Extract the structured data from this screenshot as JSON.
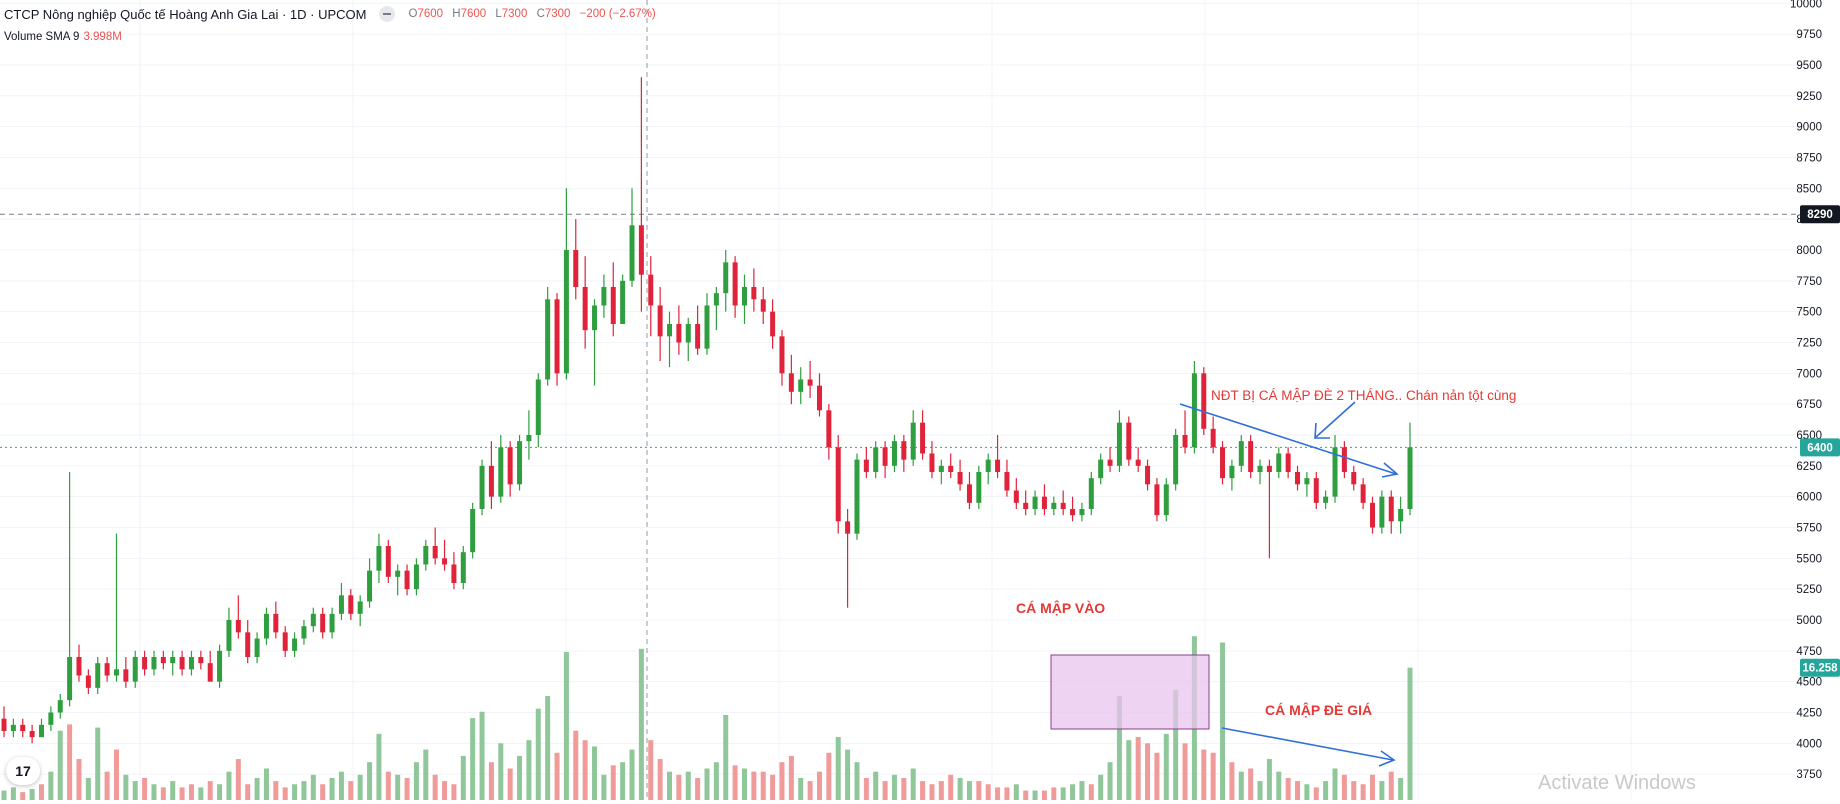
{
  "header": {
    "symbol_title": "CTCP Nông nghiệp Quốc tế Hoàng Anh Gia Lai · 1D · UPCOM",
    "open_label": "O",
    "open": "7600",
    "high_label": "H",
    "high": "7600",
    "low_label": "L",
    "low": "7300",
    "close_label": "C",
    "close": "7300",
    "change": "−200 (−2.67%)"
  },
  "volume_legend": {
    "label": "Volume SMA 9",
    "value": "3.998M"
  },
  "price_axis": {
    "ticks": [
      "10000",
      "9750",
      "9500",
      "9250",
      "9000",
      "8750",
      "8500",
      "8250",
      "8000",
      "7750",
      "7500",
      "7250",
      "7000",
      "6750",
      "6500",
      "6250",
      "6000",
      "5750",
      "5500",
      "5250",
      "5000",
      "4750",
      "4500",
      "4250",
      "4000",
      "3750"
    ],
    "crosshair_label": "8290",
    "last_price_label": "6400",
    "volume_label": "16.258"
  },
  "annotations": {
    "top_note": "NĐT BỊ CÁ MẬP ĐÈ 2 THÁNG.. Chán nản tột cùng",
    "shark_in": "CÁ MẬP VÀO",
    "shark_press": "CÁ MẬP ĐÈ GIÁ"
  },
  "watermark": "Activate Windows",
  "logo_text": "17",
  "colors": {
    "up": "#26a69a",
    "down": "#ef5350",
    "up_candle": "#2e9e3e",
    "down_candle": "#e0233a",
    "vol_up": "#8fc79a",
    "vol_down": "#f19a9a",
    "annotation": "#e53935",
    "arrow": "#2f6fd8",
    "box_fill": "#e9c4ee",
    "last_price_bg": "#26a69a"
  },
  "chart_data": {
    "type": "candlestick",
    "timeframe": "1D",
    "ylim": [
      3700,
      10050
    ],
    "crosshair_price": 8290,
    "last_price": 6400,
    "ohlc": [
      [
        4200,
        4300,
        4050,
        4100
      ],
      [
        4100,
        4200,
        4050,
        4150
      ],
      [
        4150,
        4200,
        4050,
        4100
      ],
      [
        4100,
        4150,
        4000,
        4050
      ],
      [
        4050,
        4200,
        4050,
        4150
      ],
      [
        4150,
        4300,
        4100,
        4250
      ],
      [
        4250,
        4400,
        4200,
        4350
      ],
      [
        4350,
        6200,
        4300,
        4700
      ],
      [
        4700,
        4800,
        4500,
        4550
      ],
      [
        4550,
        4600,
        4400,
        4450
      ],
      [
        4450,
        4700,
        4400,
        4650
      ],
      [
        4650,
        4700,
        4500,
        4550
      ],
      [
        4550,
        5700,
        4500,
        4600
      ],
      [
        4600,
        4700,
        4450,
        4500
      ],
      [
        4500,
        4750,
        4450,
        4700
      ],
      [
        4700,
        4750,
        4550,
        4600
      ],
      [
        4600,
        4750,
        4550,
        4700
      ],
      [
        4700,
        4750,
        4600,
        4650
      ],
      [
        4650,
        4750,
        4550,
        4700
      ],
      [
        4700,
        4750,
        4550,
        4600
      ],
      [
        4600,
        4750,
        4550,
        4700
      ],
      [
        4700,
        4750,
        4600,
        4650
      ],
      [
        4650,
        4750,
        4550,
        4500
      ],
      [
        4500,
        4800,
        4450,
        4750
      ],
      [
        4750,
        5100,
        4700,
        5000
      ],
      [
        5000,
        5200,
        4850,
        4900
      ],
      [
        4900,
        5000,
        4650,
        4700
      ],
      [
        4700,
        4900,
        4650,
        4850
      ],
      [
        4850,
        5100,
        4800,
        5050
      ],
      [
        5050,
        5150,
        4850,
        4900
      ],
      [
        4900,
        4950,
        4700,
        4750
      ],
      [
        4750,
        4900,
        4700,
        4850
      ],
      [
        4850,
        5000,
        4800,
        4950
      ],
      [
        4950,
        5100,
        4900,
        5050
      ],
      [
        5050,
        5100,
        4850,
        4900
      ],
      [
        4900,
        5100,
        4850,
        5050
      ],
      [
        5050,
        5300,
        5000,
        5200
      ],
      [
        5200,
        5250,
        5000,
        5050
      ],
      [
        5050,
        5200,
        4950,
        5150
      ],
      [
        5150,
        5500,
        5100,
        5400
      ],
      [
        5400,
        5700,
        5300,
        5600
      ],
      [
        5600,
        5650,
        5300,
        5350
      ],
      [
        5350,
        5450,
        5200,
        5400
      ],
      [
        5400,
        5450,
        5200,
        5250
      ],
      [
        5250,
        5500,
        5200,
        5450
      ],
      [
        5450,
        5650,
        5400,
        5600
      ],
      [
        5600,
        5750,
        5450,
        5500
      ],
      [
        5500,
        5650,
        5400,
        5450
      ],
      [
        5450,
        5550,
        5250,
        5300
      ],
      [
        5300,
        5600,
        5250,
        5550
      ],
      [
        5550,
        5950,
        5500,
        5900
      ],
      [
        5900,
        6300,
        5850,
        6250
      ],
      [
        6250,
        6450,
        5900,
        6000
      ],
      [
        6000,
        6500,
        5950,
        6400
      ],
      [
        6400,
        6450,
        6000,
        6100
      ],
      [
        6100,
        6500,
        6050,
        6450
      ],
      [
        6450,
        6700,
        6300,
        6500
      ],
      [
        6500,
        7000,
        6400,
        6950
      ],
      [
        6950,
        7700,
        6900,
        7600
      ],
      [
        7600,
        7650,
        6900,
        7000
      ],
      [
        7000,
        8500,
        6950,
        8000
      ],
      [
        8000,
        8250,
        7600,
        7700
      ],
      [
        7700,
        7950,
        7200,
        7350
      ],
      [
        7350,
        7600,
        6900,
        7550
      ],
      [
        7550,
        7800,
        7450,
        7700
      ],
      [
        7700,
        7900,
        7300,
        7400
      ],
      [
        7400,
        7800,
        7400,
        7750
      ],
      [
        7750,
        8500,
        7700,
        8200
      ],
      [
        8200,
        9400,
        7500,
        7800
      ],
      [
        7800,
        7950,
        7300,
        7550
      ],
      [
        7550,
        7700,
        7100,
        7300
      ],
      [
        7300,
        7500,
        7050,
        7400
      ],
      [
        7400,
        7550,
        7150,
        7250
      ],
      [
        7250,
        7450,
        7100,
        7400
      ],
      [
        7400,
        7550,
        7150,
        7200
      ],
      [
        7200,
        7650,
        7150,
        7550
      ],
      [
        7550,
        7700,
        7350,
        7650
      ],
      [
        7650,
        8000,
        7500,
        7900
      ],
      [
        7900,
        7950,
        7450,
        7550
      ],
      [
        7550,
        7800,
        7400,
        7700
      ],
      [
        7700,
        7850,
        7500,
        7600
      ],
      [
        7600,
        7700,
        7400,
        7500
      ],
      [
        7500,
        7600,
        7200,
        7300
      ],
      [
        7300,
        7350,
        6900,
        7000
      ],
      [
        7000,
        7150,
        6750,
        6850
      ],
      [
        6850,
        7050,
        6750,
        6950
      ],
      [
        6950,
        7100,
        6800,
        6900
      ],
      [
        6900,
        7000,
        6650,
        6700
      ],
      [
        6700,
        6750,
        6300,
        6400
      ],
      [
        6400,
        6500,
        5700,
        5800
      ],
      [
        5800,
        5900,
        5100,
        5700
      ],
      [
        5700,
        6350,
        5650,
        6300
      ],
      [
        6300,
        6400,
        6150,
        6200
      ],
      [
        6200,
        6450,
        6150,
        6400
      ],
      [
        6400,
        6450,
        6150,
        6250
      ],
      [
        6250,
        6500,
        6200,
        6450
      ],
      [
        6450,
        6500,
        6200,
        6300
      ],
      [
        6300,
        6700,
        6250,
        6600
      ],
      [
        6600,
        6700,
        6300,
        6350
      ],
      [
        6350,
        6450,
        6150,
        6200
      ],
      [
        6200,
        6300,
        6100,
        6250
      ],
      [
        6250,
        6350,
        6150,
        6200
      ],
      [
        6200,
        6300,
        6050,
        6100
      ],
      [
        6100,
        6200,
        5900,
        5950
      ],
      [
        5950,
        6250,
        5900,
        6200
      ],
      [
        6200,
        6350,
        6100,
        6300
      ],
      [
        6300,
        6500,
        6150,
        6200
      ],
      [
        6200,
        6300,
        6000,
        6050
      ],
      [
        6050,
        6150,
        5900,
        5950
      ],
      [
        5950,
        6050,
        5850,
        5900
      ],
      [
        5900,
        6050,
        5850,
        6000
      ],
      [
        6000,
        6100,
        5850,
        5900
      ],
      [
        5900,
        6000,
        5850,
        5950
      ],
      [
        5950,
        6050,
        5850,
        5900
      ],
      [
        5900,
        6000,
        5800,
        5850
      ],
      [
        5850,
        5950,
        5800,
        5900
      ],
      [
        5900,
        6200,
        5850,
        6150
      ],
      [
        6150,
        6350,
        6100,
        6300
      ],
      [
        6300,
        6400,
        6200,
        6250
      ],
      [
        6250,
        6700,
        6200,
        6600
      ],
      [
        6600,
        6650,
        6250,
        6300
      ],
      [
        6300,
        6400,
        6200,
        6250
      ],
      [
        6250,
        6300,
        6050,
        6100
      ],
      [
        6100,
        6150,
        5800,
        5850
      ],
      [
        5850,
        6150,
        5800,
        6100
      ],
      [
        6100,
        6550,
        6050,
        6500
      ],
      [
        6500,
        6700,
        6350,
        6400
      ],
      [
        6400,
        7100,
        6350,
        7000
      ],
      [
        7000,
        7050,
        6500,
        6550
      ],
      [
        6550,
        6650,
        6350,
        6400
      ],
      [
        6400,
        6450,
        6100,
        6150
      ],
      [
        6150,
        6300,
        6050,
        6250
      ],
      [
        6250,
        6500,
        6200,
        6450
      ],
      [
        6450,
        6500,
        6150,
        6200
      ],
      [
        6200,
        6300,
        6100,
        6250
      ],
      [
        6250,
        6300,
        5500,
        6200
      ],
      [
        6200,
        6400,
        6150,
        6350
      ],
      [
        6350,
        6400,
        6150,
        6200
      ],
      [
        6200,
        6250,
        6050,
        6100
      ],
      [
        6100,
        6200,
        6000,
        6150
      ],
      [
        6150,
        6200,
        5900,
        5950
      ],
      [
        5950,
        6050,
        5900,
        6000
      ],
      [
        6000,
        6500,
        5950,
        6400
      ],
      [
        6400,
        6450,
        6150,
        6200
      ],
      [
        6200,
        6250,
        6050,
        6100
      ],
      [
        6100,
        6150,
        5900,
        5950
      ],
      [
        5950,
        6000,
        5700,
        5750
      ],
      [
        5750,
        6050,
        5700,
        6000
      ],
      [
        6000,
        6050,
        5700,
        5800
      ],
      [
        5800,
        6000,
        5700,
        5900
      ],
      [
        5900,
        6600,
        5850,
        6400
      ]
    ],
    "volume": [
      [
        "up",
        0.3
      ],
      [
        "up",
        0.4
      ],
      [
        "down",
        0.25
      ],
      [
        "up",
        0.35
      ],
      [
        "down",
        0.5
      ],
      [
        "up",
        0.9
      ],
      [
        "up",
        2.2
      ],
      [
        "down",
        2.4
      ],
      [
        "down",
        1.3
      ],
      [
        "up",
        0.7
      ],
      [
        "up",
        2.3
      ],
      [
        "down",
        0.9
      ],
      [
        "down",
        1.6
      ],
      [
        "up",
        0.8
      ],
      [
        "up",
        0.6
      ],
      [
        "down",
        0.7
      ],
      [
        "up",
        0.5
      ],
      [
        "down",
        0.4
      ],
      [
        "up",
        0.6
      ],
      [
        "down",
        0.4
      ],
      [
        "down",
        0.5
      ],
      [
        "up",
        0.4
      ],
      [
        "down",
        0.6
      ],
      [
        "up",
        0.5
      ],
      [
        "up",
        0.9
      ],
      [
        "down",
        1.3
      ],
      [
        "down",
        0.5
      ],
      [
        "up",
        0.7
      ],
      [
        "up",
        1.0
      ],
      [
        "down",
        0.6
      ],
      [
        "down",
        0.4
      ],
      [
        "up",
        0.5
      ],
      [
        "up",
        0.6
      ],
      [
        "up",
        0.8
      ],
      [
        "down",
        0.5
      ],
      [
        "up",
        0.7
      ],
      [
        "up",
        0.9
      ],
      [
        "down",
        0.6
      ],
      [
        "up",
        0.8
      ],
      [
        "up",
        1.2
      ],
      [
        "up",
        2.1
      ],
      [
        "down",
        0.9
      ],
      [
        "up",
        0.8
      ],
      [
        "down",
        0.7
      ],
      [
        "up",
        1.2
      ],
      [
        "up",
        1.6
      ],
      [
        "down",
        0.8
      ],
      [
        "down",
        0.6
      ],
      [
        "down",
        0.5
      ],
      [
        "up",
        1.4
      ],
      [
        "up",
        2.6
      ],
      [
        "up",
        2.8
      ],
      [
        "down",
        1.2
      ],
      [
        "up",
        1.8
      ],
      [
        "down",
        1.0
      ],
      [
        "up",
        1.4
      ],
      [
        "up",
        1.9
      ],
      [
        "up",
        2.9
      ],
      [
        "up",
        3.3
      ],
      [
        "down",
        1.5
      ],
      [
        "up",
        4.7
      ],
      [
        "down",
        2.2
      ],
      [
        "down",
        1.9
      ],
      [
        "up",
        1.7
      ],
      [
        "up",
        0.8
      ],
      [
        "down",
        1.1
      ],
      [
        "up",
        1.2
      ],
      [
        "up",
        1.6
      ],
      [
        "up",
        4.8
      ],
      [
        "down",
        1.9
      ],
      [
        "down",
        1.3
      ],
      [
        "up",
        0.9
      ],
      [
        "down",
        0.8
      ],
      [
        "up",
        0.9
      ],
      [
        "down",
        0.7
      ],
      [
        "up",
        1.0
      ],
      [
        "up",
        1.2
      ],
      [
        "up",
        2.7
      ],
      [
        "down",
        1.1
      ],
      [
        "up",
        1.0
      ],
      [
        "down",
        0.9
      ],
      [
        "down",
        0.9
      ],
      [
        "down",
        0.8
      ],
      [
        "down",
        1.2
      ],
      [
        "down",
        1.4
      ],
      [
        "up",
        0.7
      ],
      [
        "down",
        0.6
      ],
      [
        "down",
        0.9
      ],
      [
        "down",
        1.5
      ],
      [
        "up",
        2.0
      ],
      [
        "up",
        1.6
      ],
      [
        "up",
        1.2
      ],
      [
        "down",
        0.7
      ],
      [
        "up",
        0.9
      ],
      [
        "down",
        0.6
      ],
      [
        "up",
        0.8
      ],
      [
        "down",
        0.7
      ],
      [
        "up",
        1.0
      ],
      [
        "down",
        0.6
      ],
      [
        "down",
        0.5
      ],
      [
        "down",
        0.6
      ],
      [
        "down",
        0.8
      ],
      [
        "up",
        0.7
      ],
      [
        "up",
        0.6
      ],
      [
        "down",
        0.6
      ],
      [
        "down",
        0.5
      ],
      [
        "down",
        0.4
      ],
      [
        "down",
        0.4
      ],
      [
        "up",
        0.5
      ],
      [
        "down",
        0.3
      ],
      [
        "up",
        0.3
      ],
      [
        "down",
        0.3
      ],
      [
        "down",
        0.4
      ],
      [
        "up",
        0.4
      ],
      [
        "up",
        0.5
      ],
      [
        "up",
        0.6
      ],
      [
        "down",
        0.5
      ],
      [
        "up",
        0.8
      ],
      [
        "up",
        1.2
      ],
      [
        "up",
        3.3
      ],
      [
        "up",
        1.9
      ],
      [
        "down",
        2.0
      ],
      [
        "down",
        1.8
      ],
      [
        "down",
        1.5
      ],
      [
        "up",
        2.1
      ],
      [
        "up",
        3.5
      ],
      [
        "down",
        1.8
      ],
      [
        "up",
        5.2
      ],
      [
        "down",
        1.6
      ],
      [
        "down",
        1.5
      ],
      [
        "up",
        5.0
      ],
      [
        "down",
        1.2
      ],
      [
        "up",
        0.9
      ],
      [
        "down",
        1.0
      ],
      [
        "up",
        0.6
      ],
      [
        "up",
        1.3
      ],
      [
        "up",
        0.9
      ],
      [
        "down",
        0.7
      ],
      [
        "down",
        0.6
      ],
      [
        "up",
        0.5
      ],
      [
        "down",
        0.4
      ],
      [
        "up",
        0.6
      ],
      [
        "up",
        1.0
      ],
      [
        "down",
        0.8
      ],
      [
        "down",
        0.6
      ],
      [
        "down",
        0.5
      ],
      [
        "down",
        0.8
      ],
      [
        "up",
        0.6
      ],
      [
        "down",
        0.9
      ],
      [
        "up",
        0.7
      ],
      [
        "up",
        4.2
      ]
    ]
  }
}
